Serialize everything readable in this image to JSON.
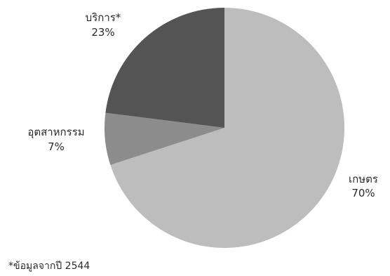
{
  "chart_data": {
    "type": "pie",
    "title": "",
    "slices": [
      {
        "label": "เกษตร",
        "value": 70,
        "value_label": "70%",
        "color": "#bdbdbd"
      },
      {
        "label": "อุตสาหกรรม",
        "value": 7,
        "value_label": "7%",
        "color": "#8c8c8c"
      },
      {
        "label": "บริการ*",
        "value": 23,
        "value_label": "23%",
        "color": "#545454"
      }
    ],
    "start_angle_deg": 0,
    "direction": "clockwise",
    "legend": "none",
    "footnote": "*ข้อมูลจากปี 2544"
  }
}
